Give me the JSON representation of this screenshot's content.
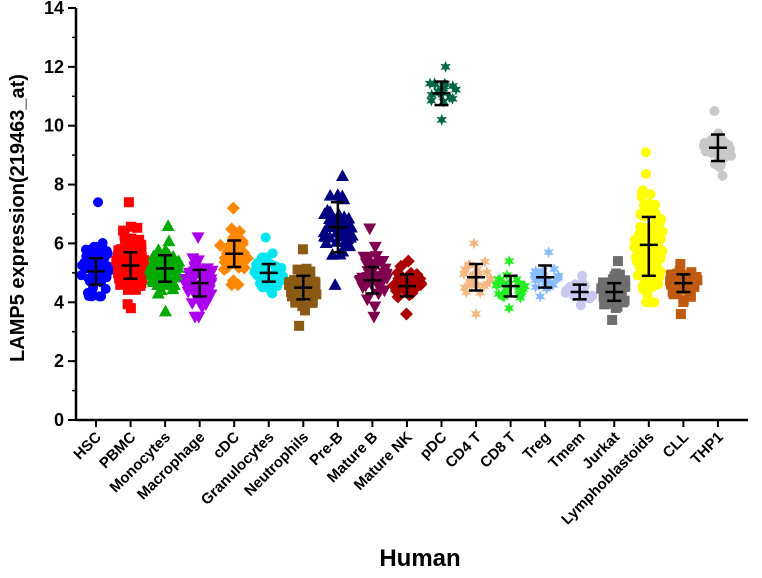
{
  "chart_data": {
    "type": "scatter",
    "subtype": "dot-plot-with-mean-and-error-bars",
    "title": "",
    "xlabel": "Human",
    "ylabel": "LAMP5 expression(219463_at)",
    "ylim": [
      0,
      14
    ],
    "yticks": [
      0,
      2,
      4,
      6,
      8,
      10,
      12,
      14
    ],
    "grid": false,
    "legend": "none",
    "categories": [
      {
        "name": "HSC",
        "color": "#0000ff",
        "marker": "circle",
        "min": 4.2,
        "max": 7.4,
        "mean": 5.05,
        "err_low": 4.6,
        "err_high": 5.5,
        "n": 60
      },
      {
        "name": "PBMC",
        "color": "#ff0000",
        "marker": "square",
        "min": 3.8,
        "max": 7.4,
        "mean": 5.25,
        "err_low": 4.8,
        "err_high": 5.7,
        "n": 80
      },
      {
        "name": "Monocytes",
        "color": "#00aa00",
        "marker": "triangle-up",
        "min": 3.7,
        "max": 6.6,
        "mean": 5.15,
        "err_low": 4.7,
        "err_high": 5.6,
        "n": 70
      },
      {
        "name": "Macrophage",
        "color": "#aa00ee",
        "marker": "triangle-down",
        "min": 3.5,
        "max": 6.2,
        "mean": 4.65,
        "err_low": 4.2,
        "err_high": 5.1,
        "n": 60
      },
      {
        "name": "cDC",
        "color": "#ff8800",
        "marker": "diamond",
        "min": 4.6,
        "max": 7.2,
        "mean": 5.65,
        "err_low": 5.2,
        "err_high": 6.1,
        "n": 40
      },
      {
        "name": "Granulocytes",
        "color": "#00e5ee",
        "marker": "circle",
        "min": 4.3,
        "max": 6.2,
        "mean": 5.0,
        "err_low": 4.7,
        "err_high": 5.3,
        "n": 50
      },
      {
        "name": "Neutrophils",
        "color": "#8b5a14",
        "marker": "square",
        "min": 3.2,
        "max": 5.8,
        "mean": 4.5,
        "err_low": 4.1,
        "err_high": 4.9,
        "n": 50
      },
      {
        "name": "Pre-B",
        "color": "#000080",
        "marker": "triangle-up",
        "min": 4.6,
        "max": 8.3,
        "mean": 6.55,
        "err_low": 5.7,
        "err_high": 7.4,
        "n": 45
      },
      {
        "name": "Mature B",
        "color": "#800050",
        "marker": "triangle-down",
        "min": 3.5,
        "max": 6.5,
        "mean": 4.75,
        "err_low": 4.3,
        "err_high": 5.2,
        "n": 50
      },
      {
        "name": "Mature NK",
        "color": "#aa0000",
        "marker": "diamond",
        "min": 3.6,
        "max": 5.4,
        "mean": 4.55,
        "err_low": 4.2,
        "err_high": 4.95,
        "n": 40
      },
      {
        "name": "pDC",
        "color": "#006644",
        "marker": "star",
        "min": 10.2,
        "max": 12.0,
        "mean": 11.1,
        "err_low": 10.7,
        "err_high": 11.5,
        "n": 20
      },
      {
        "name": "CD4 T",
        "color": "#f4b884",
        "marker": "star",
        "min": 3.6,
        "max": 6.0,
        "mean": 4.85,
        "err_low": 4.4,
        "err_high": 5.3,
        "n": 30
      },
      {
        "name": "CD8 T",
        "color": "#22ee22",
        "marker": "star",
        "min": 3.8,
        "max": 5.4,
        "mean": 4.55,
        "err_low": 4.2,
        "err_high": 4.9,
        "n": 30
      },
      {
        "name": "Treg",
        "color": "#88bbff",
        "marker": "star",
        "min": 4.2,
        "max": 5.7,
        "mean": 4.85,
        "err_low": 4.5,
        "err_high": 5.25,
        "n": 25
      },
      {
        "name": "Tmem",
        "color": "#c8c8f0",
        "marker": "circle",
        "min": 3.9,
        "max": 4.9,
        "mean": 4.35,
        "err_low": 4.1,
        "err_high": 4.6,
        "n": 25
      },
      {
        "name": "Jurkat",
        "color": "#6e6e6e",
        "marker": "square",
        "min": 3.4,
        "max": 5.4,
        "mean": 4.35,
        "err_low": 4.05,
        "err_high": 4.65,
        "n": 40
      },
      {
        "name": "Lymphoblastoids",
        "color": "#ffff00",
        "marker": "circle",
        "min": 4.0,
        "max": 9.1,
        "mean": 5.95,
        "err_low": 4.9,
        "err_high": 6.9,
        "n": 120
      },
      {
        "name": "CLL",
        "color": "#c05a10",
        "marker": "square",
        "min": 3.6,
        "max": 5.3,
        "mean": 4.65,
        "err_low": 4.35,
        "err_high": 4.95,
        "n": 35
      },
      {
        "name": "THP1",
        "color": "#c8c8c8",
        "marker": "circle",
        "min": 8.3,
        "max": 10.5,
        "mean": 9.25,
        "err_low": 8.8,
        "err_high": 9.7,
        "n": 30
      }
    ]
  }
}
